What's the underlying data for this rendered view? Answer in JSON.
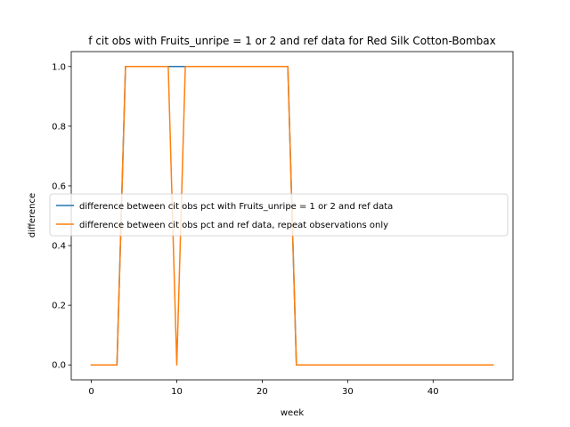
{
  "chart_data": {
    "type": "line",
    "title": "f cit obs with Fruits_unripe = 1 or 2 and ref data for Red Silk Cotton-Bombax",
    "xlabel": "week",
    "ylabel": "difference",
    "xlim": [
      -2.35,
      49.35
    ],
    "ylim": [
      -0.05,
      1.05
    ],
    "xticks": [
      0,
      10,
      20,
      30,
      40
    ],
    "yticks": [
      0.0,
      0.2,
      0.4,
      0.6,
      0.8,
      1.0
    ],
    "xtick_labels": [
      "0",
      "10",
      "20",
      "30",
      "40"
    ],
    "ytick_labels": [
      "0.0",
      "0.2",
      "0.4",
      "0.6",
      "0.8",
      "1.0"
    ],
    "grid": false,
    "legend_position": "center-right",
    "x": [
      0,
      1,
      2,
      3,
      4,
      5,
      6,
      7,
      8,
      9,
      10,
      11,
      12,
      13,
      14,
      15,
      16,
      17,
      18,
      19,
      20,
      21,
      22,
      23,
      24,
      25,
      26,
      27,
      28,
      29,
      30,
      31,
      32,
      33,
      34,
      35,
      36,
      37,
      38,
      39,
      40,
      41,
      42,
      43,
      44,
      45,
      46,
      47
    ],
    "series": [
      {
        "name": "difference between cit obs pct with Fruits_unripe = 1 or 2 and ref data",
        "color": "#1f77b4",
        "values": [
          0,
          0,
          0,
          0,
          1,
          1,
          1,
          1,
          1,
          1,
          1,
          1,
          1,
          1,
          1,
          1,
          1,
          1,
          1,
          1,
          1,
          1,
          1,
          1,
          0,
          0,
          0,
          0,
          0,
          0,
          0,
          0,
          0,
          0,
          0,
          0,
          0,
          0,
          0,
          0,
          0,
          0,
          0,
          0,
          0,
          0,
          0,
          0
        ]
      },
      {
        "name": "difference between cit obs pct and ref data, repeat observations only",
        "color": "#ff7f0e",
        "values": [
          0,
          0,
          0,
          0,
          1,
          1,
          1,
          1,
          1,
          1,
          0,
          1,
          1,
          1,
          1,
          1,
          1,
          1,
          1,
          1,
          1,
          1,
          1,
          1,
          0,
          0,
          0,
          0,
          0,
          0,
          0,
          0,
          0,
          0,
          0,
          0,
          0,
          0,
          0,
          0,
          0,
          0,
          0,
          0,
          0,
          0,
          0,
          0
        ]
      }
    ]
  }
}
